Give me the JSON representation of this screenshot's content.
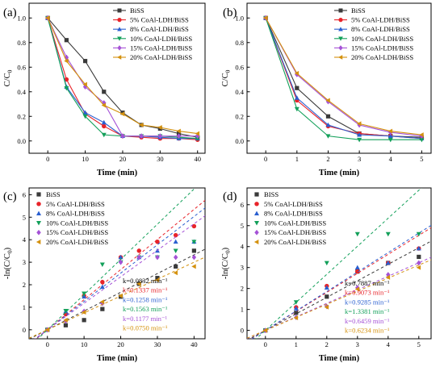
{
  "figure": {
    "panels": [
      "(a)",
      "(b)",
      "(c)",
      "(d)"
    ]
  },
  "colors": {
    "BiSS": "#3a3a3a",
    "5% CoAl-LDH/BiSS": "#e8242a",
    "8% CoAl-LDH/BiSS": "#2a5fd0",
    "10% CoAl-LDH/BiSS": "#13a05a",
    "15% CoAl-LDH/BiSS": "#a552d6",
    "20% CoAl-LDH/BiSS": "#d4910e"
  },
  "chart_data": [
    {
      "panel": "(a)",
      "type": "line",
      "xlabel": "Time (min)",
      "ylabel": "C/C0",
      "xlim": [
        -5,
        42
      ],
      "ylim": [
        -0.1,
        1.12
      ],
      "xticks": [
        0,
        10,
        20,
        30,
        40
      ],
      "yticks": [
        0.0,
        0.2,
        0.4,
        0.6,
        0.8,
        1.0
      ],
      "ytick_labels": [
        "0.0",
        "0.2",
        "0.4",
        "0.6",
        "0.8",
        "1.0"
      ],
      "legend": "top-right",
      "x": [
        0,
        5,
        10,
        15,
        20,
        25,
        30,
        35,
        40
      ],
      "series": [
        {
          "name": "BiSS",
          "marker": "square",
          "values": [
            1.0,
            0.82,
            0.65,
            0.4,
            0.23,
            0.13,
            0.1,
            0.06,
            0.03
          ]
        },
        {
          "name": "5% CoAl-LDH/BiSS",
          "marker": "circle",
          "values": [
            1.0,
            0.5,
            0.22,
            0.12,
            0.04,
            0.03,
            0.02,
            0.02,
            0.01
          ]
        },
        {
          "name": "8% CoAl-LDH/BiSS",
          "marker": "triangle-up",
          "values": [
            1.0,
            0.44,
            0.23,
            0.15,
            0.04,
            0.04,
            0.03,
            0.02,
            0.02
          ]
        },
        {
          "name": "10% CoAl-LDH/BiSS",
          "marker": "triangle-down",
          "values": [
            1.0,
            0.43,
            0.2,
            0.05,
            0.04,
            0.04,
            0.04,
            0.03,
            0.02
          ]
        },
        {
          "name": "15% CoAl-LDH/BiSS",
          "marker": "diamond",
          "values": [
            1.0,
            0.68,
            0.44,
            0.31,
            0.04,
            0.04,
            0.04,
            0.04,
            0.04
          ]
        },
        {
          "name": "20% CoAl-LDH/BiSS",
          "marker": "triangle-left",
          "values": [
            1.0,
            0.65,
            0.46,
            0.29,
            0.22,
            0.13,
            0.11,
            0.08,
            0.06
          ]
        }
      ]
    },
    {
      "panel": "(b)",
      "type": "line",
      "xlabel": "Time (min)",
      "ylabel": "C/C0",
      "xlim": [
        -0.6,
        5.3
      ],
      "ylim": [
        -0.1,
        1.12
      ],
      "xticks": [
        0,
        1,
        2,
        3,
        4,
        5
      ],
      "yticks": [
        0.0,
        0.2,
        0.4,
        0.6,
        0.8,
        1.0
      ],
      "ytick_labels": [
        "0.0",
        "0.2",
        "0.4",
        "0.6",
        "0.8",
        "1.0"
      ],
      "legend": "top-right",
      "x": [
        0,
        1,
        2,
        3,
        4,
        5
      ],
      "series": [
        {
          "name": "BiSS",
          "marker": "square",
          "values": [
            1.0,
            0.43,
            0.2,
            0.06,
            0.04,
            0.03
          ]
        },
        {
          "name": "5% CoAl-LDH/BiSS",
          "marker": "circle",
          "values": [
            1.0,
            0.33,
            0.12,
            0.06,
            0.04,
            0.02
          ]
        },
        {
          "name": "8% CoAl-LDH/BiSS",
          "marker": "triangle-up",
          "values": [
            1.0,
            0.35,
            0.13,
            0.05,
            0.04,
            0.02
          ]
        },
        {
          "name": "10% CoAl-LDH/BiSS",
          "marker": "triangle-down",
          "values": [
            1.0,
            0.26,
            0.04,
            0.01,
            0.01,
            0.01
          ]
        },
        {
          "name": "15% CoAl-LDH/BiSS",
          "marker": "diamond",
          "values": [
            1.0,
            0.54,
            0.32,
            0.13,
            0.07,
            0.04
          ]
        },
        {
          "name": "20% CoAl-LDH/BiSS",
          "marker": "triangle-left",
          "values": [
            1.0,
            0.55,
            0.33,
            0.14,
            0.08,
            0.05
          ]
        }
      ]
    },
    {
      "panel": "(c)",
      "type": "scatter",
      "xlabel": "Time (min)",
      "ylabel": "-ln(C/C0)",
      "xlim": [
        -5,
        43
      ],
      "ylim": [
        -0.4,
        6.3
      ],
      "xticks": [
        0,
        10,
        20,
        30,
        40
      ],
      "yticks": [
        0,
        1,
        2,
        3,
        4,
        5,
        6
      ],
      "ytick_labels": [
        "0",
        "1",
        "2",
        "3",
        "4",
        "5",
        "6"
      ],
      "legend": "top-left",
      "fit_lines": "dashed",
      "x": [
        0,
        5,
        10,
        15,
        20,
        25,
        30,
        35,
        40
      ],
      "series": [
        {
          "name": "BiSS",
          "marker": "square",
          "values": [
            0.0,
            0.2,
            0.43,
            0.92,
            1.47,
            2.04,
            2.3,
            2.81,
            3.51
          ],
          "fit": {
            "k": 0.0832,
            "label": "k=0.0832 min⁻¹"
          }
        },
        {
          "name": "5% CoAl-LDH/BiSS",
          "marker": "circle",
          "values": [
            0.0,
            0.69,
            1.51,
            2.12,
            3.22,
            3.51,
            3.91,
            4.2,
            4.6
          ],
          "fit": {
            "k": 0.1337,
            "label": "k=0.1337 min⁻¹"
          }
        },
        {
          "name": "8% CoAl-LDH/BiSS",
          "marker": "triangle-up",
          "values": [
            0.0,
            0.82,
            1.47,
            1.9,
            3.22,
            3.22,
            3.51,
            3.91,
            3.91
          ],
          "fit": {
            "k": 0.1258,
            "label": "k=0.1258 min⁻¹"
          }
        },
        {
          "name": "10% CoAl-LDH/BiSS",
          "marker": "triangle-down",
          "values": [
            0.0,
            0.84,
            1.61,
            2.9,
            3.0,
            3.22,
            3.22,
            3.51,
            3.91
          ],
          "fit": {
            "k": 0.1563,
            "label": "k=0.1563 min⁻¹"
          }
        },
        {
          "name": "15% CoAl-LDH/BiSS",
          "marker": "diamond",
          "values": [
            0.0,
            0.39,
            0.82,
            1.17,
            3.0,
            3.22,
            3.22,
            3.22,
            3.22
          ],
          "fit": {
            "k": 0.1177,
            "label": "k=0.1177 min⁻¹"
          }
        },
        {
          "name": "20% CoAl-LDH/BiSS",
          "marker": "triangle-left",
          "values": [
            0.0,
            0.43,
            0.78,
            1.24,
            1.51,
            2.04,
            2.21,
            2.53,
            2.81
          ],
          "fit": {
            "k": 0.075,
            "label": "k=0.0750 min⁻¹"
          }
        }
      ]
    },
    {
      "panel": "(d)",
      "type": "scatter",
      "xlabel": "Time (min)",
      "ylabel": "-ln(C/C0)",
      "xlim": [
        -0.6,
        5.4
      ],
      "ylim": [
        -0.4,
        6.8
      ],
      "xticks": [
        0,
        1,
        2,
        3,
        4,
        5
      ],
      "yticks": [
        0,
        1,
        2,
        3,
        4,
        5,
        6
      ],
      "ytick_labels": [
        "0",
        "1",
        "2",
        "3",
        "4",
        "5",
        "6"
      ],
      "legend": "top-left",
      "fit_lines": "dashed",
      "x": [
        0,
        1,
        2,
        3,
        4,
        5
      ],
      "series": [
        {
          "name": "BISS",
          "marker": "square",
          "values": [
            0.0,
            0.84,
            1.61,
            2.81,
            3.22,
            3.51
          ],
          "fit": {
            "k": 0.7887,
            "label": "k=0.7887 min⁻¹"
          }
        },
        {
          "name": "5% CoAl-LDH/BiSS",
          "marker": "circle",
          "values": [
            0.0,
            1.1,
            2.12,
            2.81,
            3.22,
            3.91
          ],
          "fit": {
            "k": 0.9073,
            "label": "k=0.9073 min⁻¹"
          }
        },
        {
          "name": "8% CoAl-LDH/BiSS",
          "marker": "triangle-up",
          "values": [
            0.0,
            1.05,
            2.04,
            3.0,
            3.22,
            3.91
          ],
          "fit": {
            "k": 0.9285,
            "label": "k=0.9285 min⁻¹"
          }
        },
        {
          "name": "10% CoAl-LDH/BiSS",
          "marker": "triangle-down",
          "values": [
            0.0,
            1.35,
            3.22,
            4.6,
            4.6,
            4.6
          ],
          "fit": {
            "k": 1.3381,
            "label": "k=1.3381 min⁻¹"
          }
        },
        {
          "name": "15% CoAl-LDH/BiSS",
          "marker": "diamond",
          "values": [
            0.0,
            0.62,
            1.14,
            2.04,
            2.66,
            3.22
          ],
          "fit": {
            "k": 0.6459,
            "label": "k=0.6459 min⁻¹"
          }
        },
        {
          "name": "20% CoAl-LDH/BiSS",
          "marker": "triangle-left",
          "values": [
            0.0,
            0.6,
            1.11,
            1.97,
            2.53,
            3.0
          ],
          "fit": {
            "k": 0.6234,
            "label": "k=0.6234 min⁻¹"
          }
        }
      ]
    }
  ]
}
